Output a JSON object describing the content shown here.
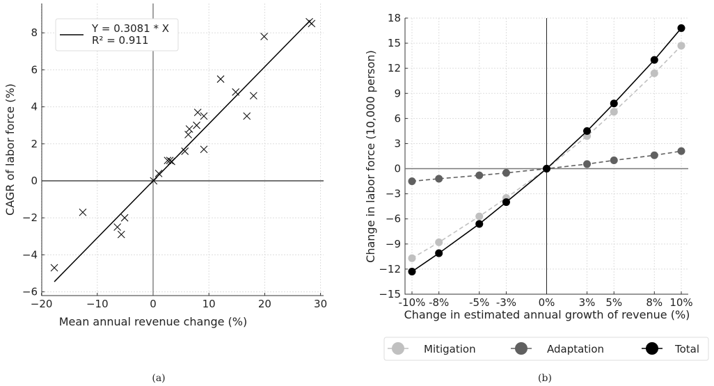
{
  "chart_data": [
    {
      "type": "scatter",
      "caption": "(a)",
      "xlabel": "Mean annual revenue change (%)",
      "ylabel": "CAGR of labor force (%)",
      "xlim": [
        -20,
        30.5
      ],
      "ylim": [
        -6.2,
        9.6
      ],
      "xticks": [
        -20,
        -10,
        0,
        10,
        20,
        30
      ],
      "yticks": [
        -6,
        -4,
        -2,
        0,
        2,
        4,
        6,
        8
      ],
      "grid": true,
      "legend_position": "top-left",
      "fit": {
        "label_line1": "Y = 0.3081 * X",
        "label_line2": "R² = 0.911",
        "slope": 0.3081,
        "x_range": [
          -17.7,
          28.2
        ]
      },
      "points": [
        [
          28.0,
          8.6
        ],
        [
          28.4,
          8.5
        ],
        [
          19.9,
          7.8
        ],
        [
          12.1,
          5.5
        ],
        [
          14.8,
          4.8
        ],
        [
          18.0,
          4.6
        ],
        [
          16.8,
          3.5
        ],
        [
          8.0,
          3.7
        ],
        [
          9.1,
          3.5
        ],
        [
          7.8,
          3.0
        ],
        [
          6.5,
          2.8
        ],
        [
          6.3,
          2.5
        ],
        [
          9.1,
          1.7
        ],
        [
          5.7,
          1.6
        ],
        [
          2.6,
          1.1
        ],
        [
          3.0,
          1.1
        ],
        [
          3.3,
          1.05
        ],
        [
          1.0,
          0.4
        ],
        [
          0.1,
          0.0
        ],
        [
          -12.6,
          -1.7
        ],
        [
          -5.1,
          -2.0
        ],
        [
          -6.4,
          -2.5
        ],
        [
          -5.7,
          -2.9
        ],
        [
          -17.7,
          -4.7
        ]
      ]
    },
    {
      "type": "line",
      "caption": "(b)",
      "xlabel": "Change in estimated annual growth of revenue (%)",
      "ylabel": "Change in labor force (10,000 person)",
      "x": [
        -10,
        -8,
        -5,
        -3,
        0,
        3,
        5,
        8,
        10
      ],
      "categories": [
        "-10%",
        "-8%",
        "-5%",
        "-3%",
        "0%",
        "3%",
        "5%",
        "8%",
        "10%"
      ],
      "ylim": [
        -15,
        18
      ],
      "yticks": [
        -15,
        -12,
        -9,
        -6,
        -3,
        0,
        3,
        6,
        9,
        12,
        15,
        18
      ],
      "grid": true,
      "legend_position": "bottom",
      "series": [
        {
          "name": "Mitigation",
          "color": "#c0c0c0",
          "dashed": true,
          "values": [
            -10.7,
            -8.8,
            -5.7,
            -3.5,
            0,
            3.9,
            6.8,
            11.4,
            14.7
          ]
        },
        {
          "name": "Adaptation",
          "color": "#606060",
          "dashed": true,
          "values": [
            -1.5,
            -1.2,
            -0.8,
            -0.5,
            0,
            0.55,
            1.0,
            1.6,
            2.1
          ]
        },
        {
          "name": "Total",
          "color": "#000000",
          "dashed": false,
          "values": [
            -12.3,
            -10.1,
            -6.6,
            -4.0,
            0,
            4.5,
            7.8,
            13.0,
            16.8
          ]
        }
      ]
    }
  ]
}
